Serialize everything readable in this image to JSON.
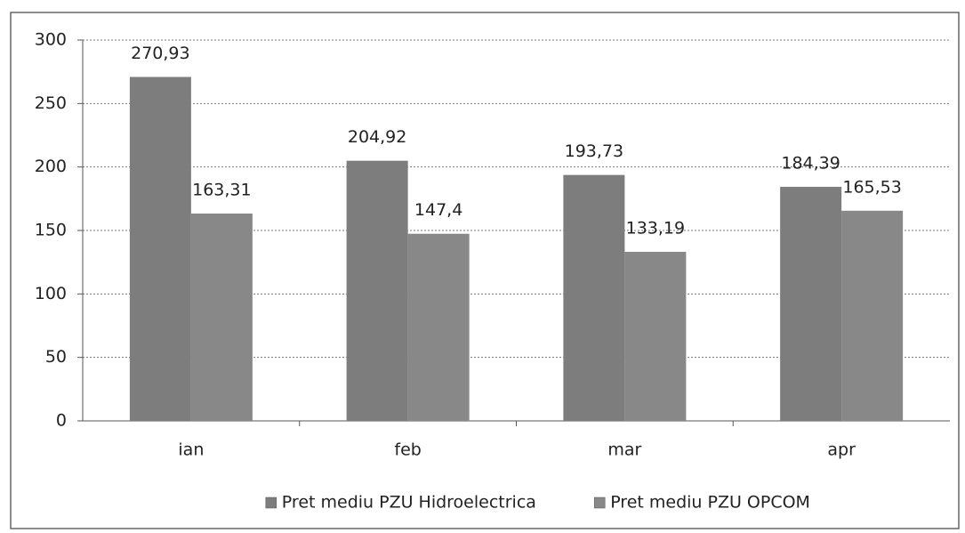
{
  "chart_data": {
    "type": "bar",
    "categories": [
      "ian",
      "feb",
      "mar",
      "apr"
    ],
    "series": [
      {
        "name": "Pret mediu PZU Hidroelectrica",
        "color": "#7d7d7d",
        "values": [
          270.93,
          204.92,
          193.73,
          184.39
        ],
        "value_labels": [
          "270,93",
          "204,92",
          "193,73",
          "184,39"
        ]
      },
      {
        "name": "Pret mediu PZU OPCOM",
        "color": "#888888",
        "values": [
          163.31,
          147.4,
          133.19,
          165.53
        ],
        "value_labels": [
          "163,31",
          "147,4",
          "133,19",
          "165,53"
        ]
      }
    ],
    "ylim": [
      0,
      300
    ],
    "yticks": [
      0,
      50,
      100,
      150,
      200,
      250,
      300
    ],
    "grid": true,
    "legend": "bottom"
  }
}
